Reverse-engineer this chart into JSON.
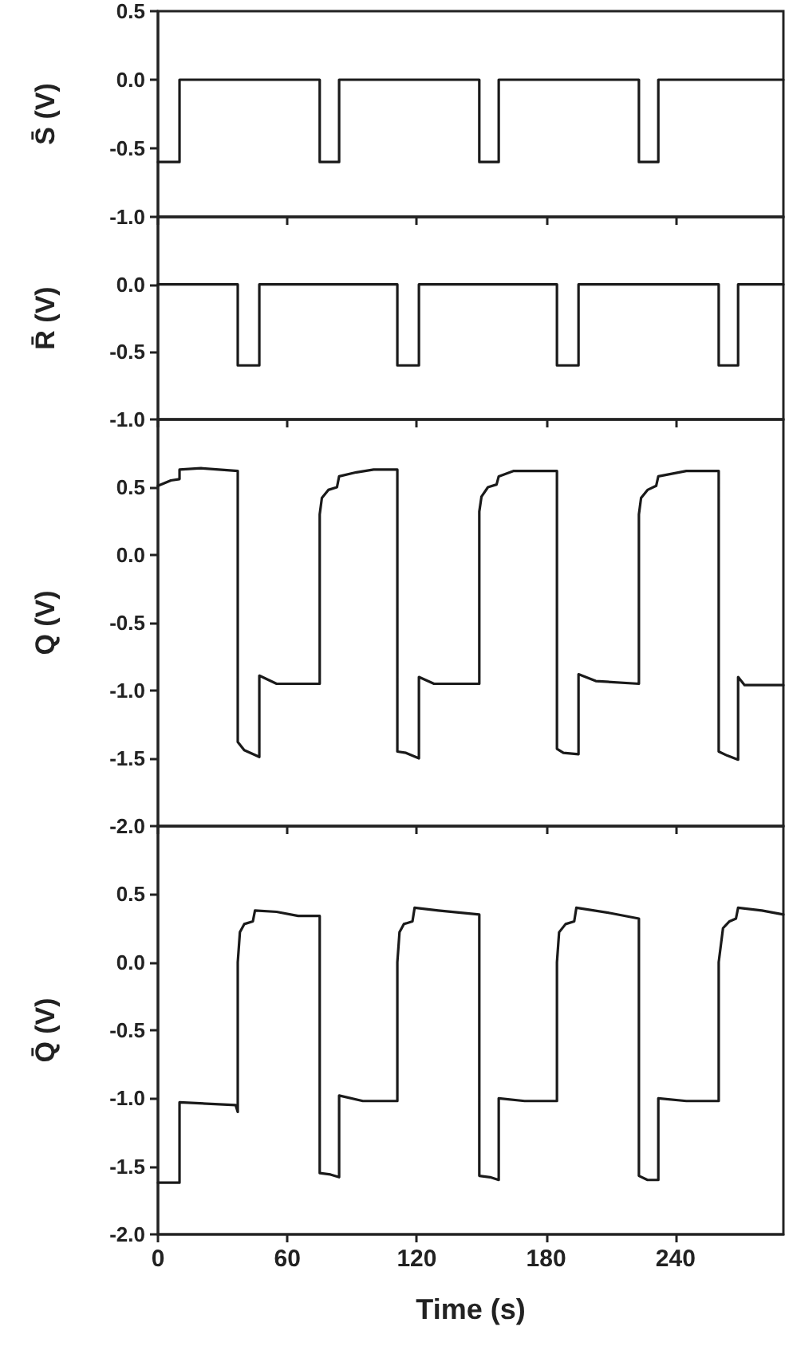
{
  "chart_data": [
    {
      "type": "line",
      "ylabel": "S̄ (V)",
      "marker": "none",
      "tick_labels": "y",
      "xlim": [
        0,
        290
      ],
      "xticks": [
        {
          "value": 0,
          "label": null
        },
        {
          "value": 60,
          "label": null
        },
        {
          "value": 120,
          "label": null
        },
        {
          "value": 180,
          "label": null
        },
        {
          "value": 240,
          "label": null
        }
      ],
      "ylim": [
        -1,
        0.5
      ],
      "yticks": [
        {
          "value": -1,
          "label": "-1.0"
        },
        {
          "value": -0.5,
          "label": "-0.5"
        },
        {
          "value": 0,
          "label": "0.0"
        },
        {
          "value": 0.5,
          "label": "0.5"
        }
      ],
      "series": [
        {
          "color": "#1a1a1a",
          "x": [
            0,
            10,
            10,
            75,
            75,
            84,
            84,
            149,
            149,
            158,
            158,
            223,
            223,
            232,
            232,
            290
          ],
          "values": [
            -0.6,
            -0.6,
            0,
            0,
            -0.6,
            -0.6,
            0,
            0,
            -0.6,
            -0.6,
            0,
            0,
            -0.6,
            -0.6,
            0,
            0
          ]
        }
      ]
    },
    {
      "type": "line",
      "ylabel": "R̄ (V)",
      "marker": "none",
      "tick_labels": "y",
      "xlim": [
        0,
        290
      ],
      "xticks": [
        {
          "value": 0,
          "label": null
        },
        {
          "value": 60,
          "label": null
        },
        {
          "value": 120,
          "label": null
        },
        {
          "value": 180,
          "label": null
        },
        {
          "value": 240,
          "label": null
        }
      ],
      "ylim": [
        -1,
        0.5
      ],
      "yticks": [
        {
          "value": -1,
          "label": "-1.0"
        },
        {
          "value": -0.5,
          "label": "-0.5"
        },
        {
          "value": 0,
          "label": "0.0"
        }
      ],
      "series": [
        {
          "color": "#1a1a1a",
          "x": [
            0,
            37,
            37,
            47,
            47,
            111,
            111,
            121,
            121,
            185,
            185,
            195,
            195,
            260,
            260,
            269,
            269,
            290
          ],
          "values": [
            0,
            0,
            -0.6,
            -0.6,
            0,
            0,
            -0.6,
            -0.6,
            0,
            0,
            -0.6,
            -0.6,
            0,
            0,
            -0.6,
            -0.6,
            0,
            0
          ]
        }
      ]
    },
    {
      "type": "line",
      "ylabel": "Q (V)",
      "marker": "none",
      "tick_labels": "y",
      "xlim": [
        0,
        290
      ],
      "xticks": [
        {
          "value": 0,
          "label": null
        },
        {
          "value": 60,
          "label": null
        },
        {
          "value": 120,
          "label": null
        },
        {
          "value": 180,
          "label": null
        },
        {
          "value": 240,
          "label": null
        }
      ],
      "ylim": [
        -2,
        1
      ],
      "yticks": [
        {
          "value": -2,
          "label": "-2.0"
        },
        {
          "value": -1.5,
          "label": "-1.5"
        },
        {
          "value": -1,
          "label": "-1.0"
        },
        {
          "value": -0.5,
          "label": "-0.5"
        },
        {
          "value": 0,
          "label": "0.0"
        },
        {
          "value": 0.5,
          "label": "0.5"
        }
      ],
      "series": [
        {
          "color": "#1a1a1a",
          "x": [
            0,
            6,
            10,
            10,
            20,
            37,
            37,
            40,
            47,
            47,
            55,
            75,
            75,
            76,
            79,
            83,
            84,
            92,
            100,
            111,
            111,
            115,
            121,
            121,
            128,
            149,
            149,
            150,
            153,
            157,
            158,
            165,
            185,
            185,
            188,
            195,
            195,
            203,
            223,
            223,
            224,
            227,
            231,
            232,
            245,
            260,
            260,
            264,
            269,
            269,
            272,
            290
          ],
          "values": [
            0.51,
            0.55,
            0.56,
            0.63,
            0.64,
            0.62,
            -1.38,
            -1.44,
            -1.49,
            -0.89,
            -0.95,
            -0.95,
            0.3,
            0.42,
            0.48,
            0.5,
            0.58,
            0.61,
            0.63,
            0.63,
            -1.45,
            -1.46,
            -1.5,
            -0.9,
            -0.95,
            -0.95,
            0.32,
            0.43,
            0.5,
            0.52,
            0.58,
            0.62,
            0.62,
            -1.43,
            -1.46,
            -1.47,
            -0.88,
            -0.93,
            -0.95,
            0.3,
            0.42,
            0.48,
            0.51,
            0.58,
            0.62,
            0.62,
            -1.45,
            -1.48,
            -1.51,
            -0.9,
            -0.96,
            -0.96
          ]
        }
      ]
    },
    {
      "type": "line",
      "ylabel": "Q̄ (V)",
      "xlabel": "Time (s)",
      "marker": "none",
      "xlim": [
        0,
        290
      ],
      "xticks": [
        0,
        60,
        120,
        180,
        240
      ],
      "ylim": [
        -2,
        1
      ],
      "yticks": [
        {
          "value": -2,
          "label": "-2.0"
        },
        {
          "value": -1.5,
          "label": "-1.5"
        },
        {
          "value": -1,
          "label": "-1.0"
        },
        {
          "value": -0.5,
          "label": "-0.5"
        },
        {
          "value": 0,
          "label": "0.0"
        },
        {
          "value": 0.5,
          "label": "0.5"
        }
      ],
      "series": [
        {
          "color": "#1a1a1a",
          "x": [
            0,
            10,
            10,
            36,
            37,
            37,
            38,
            40,
            44,
            45,
            55,
            65,
            75,
            75,
            80,
            84,
            84,
            95,
            111,
            111,
            112,
            114,
            118,
            119,
            130,
            149,
            149,
            154,
            158,
            158,
            170,
            185,
            185,
            186,
            189,
            193,
            194,
            210,
            223,
            223,
            227,
            232,
            232,
            245,
            260,
            260,
            262,
            265,
            268,
            269,
            280,
            290
          ],
          "values": [
            -1.62,
            -1.62,
            -1.03,
            -1.05,
            -1.1,
            0,
            0.22,
            0.28,
            0.3,
            0.38,
            0.37,
            0.34,
            0.34,
            -1.55,
            -1.56,
            -1.58,
            -0.98,
            -1.02,
            -1.02,
            0,
            0.22,
            0.28,
            0.3,
            0.4,
            0.38,
            0.35,
            -1.57,
            -1.58,
            -1.6,
            -1,
            -1.02,
            -1.02,
            0,
            0.22,
            0.28,
            0.3,
            0.4,
            0.36,
            0.32,
            -1.57,
            -1.6,
            -1.6,
            -1,
            -1.02,
            -1.02,
            0,
            0.25,
            0.3,
            0.32,
            0.4,
            0.38,
            0.35
          ]
        }
      ]
    }
  ]
}
